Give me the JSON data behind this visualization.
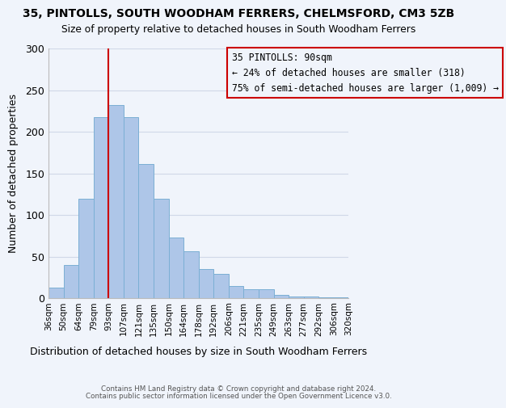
{
  "title": "35, PINTOLLS, SOUTH WOODHAM FERRERS, CHELMSFORD, CM3 5ZB",
  "subtitle": "Size of property relative to detached houses in South Woodham Ferrers",
  "xlabel": "Distribution of detached houses by size in South Woodham Ferrers",
  "ylabel": "Number of detached properties",
  "footer1": "Contains HM Land Registry data © Crown copyright and database right 2024.",
  "footer2": "Contains public sector information licensed under the Open Government Licence v3.0.",
  "bin_labels": [
    "36sqm",
    "50sqm",
    "64sqm",
    "79sqm",
    "93sqm",
    "107sqm",
    "121sqm",
    "135sqm",
    "150sqm",
    "164sqm",
    "178sqm",
    "192sqm",
    "206sqm",
    "221sqm",
    "235sqm",
    "249sqm",
    "263sqm",
    "277sqm",
    "292sqm",
    "306sqm",
    "320sqm"
  ],
  "bar_heights": [
    13,
    40,
    120,
    218,
    232,
    218,
    161,
    120,
    73,
    57,
    35,
    29,
    15,
    11,
    11,
    4,
    2,
    2,
    1,
    1
  ],
  "bar_color": "#aec6e8",
  "bar_edge_color": "#7bafd4",
  "grid_color": "#d0d8e8",
  "background_color": "#f0f4fb",
  "vline_color": "#cc0000",
  "vline_position": 4.5,
  "annotation_box_text": "35 PINTOLLS: 90sqm\n← 24% of detached houses are smaller (318)\n75% of semi-detached houses are larger (1,009) →",
  "annotation_box_edge_color": "#cc0000",
  "ylim": [
    0,
    300
  ],
  "yticks": [
    0,
    50,
    100,
    150,
    200,
    250,
    300
  ]
}
